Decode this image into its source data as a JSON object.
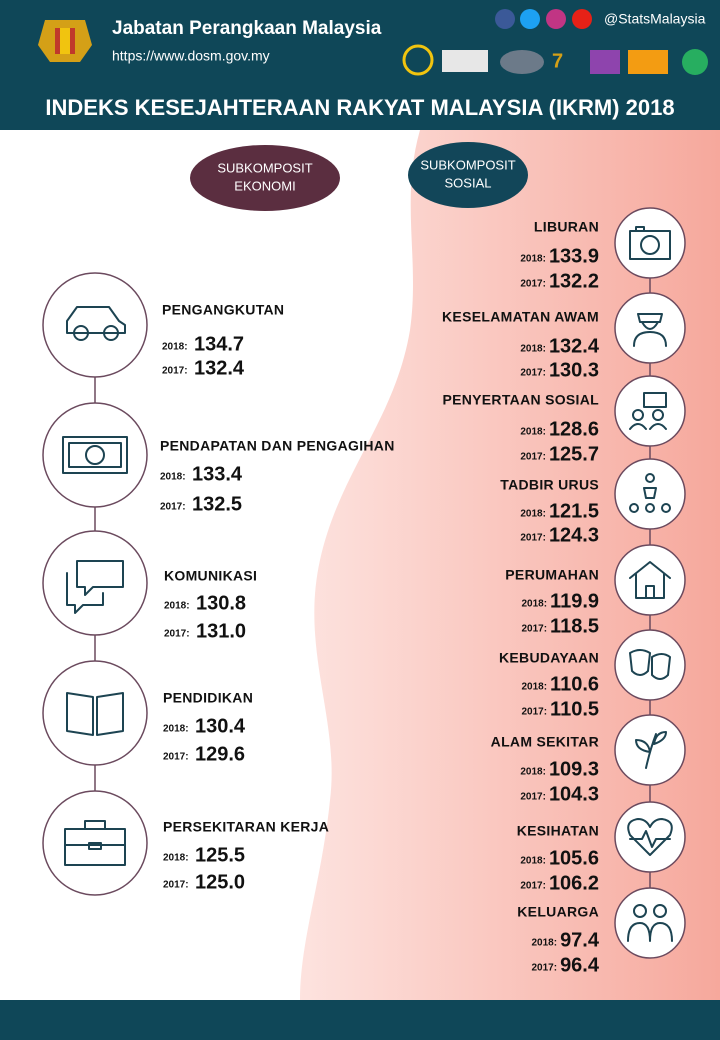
{
  "header": {
    "org": "Jabatan Perangkaan Malaysia",
    "url": "https://www.dosm.gov.my",
    "handle": "@StatsMalaysia",
    "title": "INDEKS KESEJAHTERAAN RAKYAT MALAYSIA (IKRM) 2018"
  },
  "year_labels": [
    "2018:",
    "2017:"
  ],
  "ekonomi": {
    "label": [
      "SUBKOMPOSIT",
      "EKONOMI"
    ],
    "items": [
      {
        "name": "PENGANGKUTAN",
        "v2018": "134.7",
        "v2017": "132.4"
      },
      {
        "name": "PENDAPATAN DAN PENGAGIHAN",
        "v2018": "133.4",
        "v2017": "132.5"
      },
      {
        "name": "KOMUNIKASI",
        "v2018": "130.8",
        "v2017": "131.0"
      },
      {
        "name": "PENDIDIKAN",
        "v2018": "130.4",
        "v2017": "129.6"
      },
      {
        "name": "PERSEKITARAN KERJA",
        "v2018": "125.5",
        "v2017": "125.0"
      }
    ]
  },
  "sosial": {
    "label": [
      "SUBKOMPOSIT",
      "SOSIAL"
    ],
    "items": [
      {
        "name": "LIBURAN",
        "v2018": "133.9",
        "v2017": "132.2"
      },
      {
        "name": "KESELAMATAN AWAM",
        "v2018": "132.4",
        "v2017": "130.3"
      },
      {
        "name": "PENYERTAAN SOSIAL",
        "v2018": "128.6",
        "v2017": "125.7"
      },
      {
        "name": "TADBIR URUS",
        "v2018": "121.5",
        "v2017": "124.3"
      },
      {
        "name": "PERUMAHAN",
        "v2018": "119.9",
        "v2017": "118.5"
      },
      {
        "name": "KEBUDAYAAN",
        "v2018": "110.6",
        "v2017": "110.5"
      },
      {
        "name": "ALAM SEKITAR",
        "v2018": "109.3",
        "v2017": "104.3"
      },
      {
        "name": "KESIHATAN",
        "v2018": "105.6",
        "v2017": "106.2"
      },
      {
        "name": "KELUARGA",
        "v2018": "97.4",
        "v2017": "96.4"
      }
    ]
  }
}
